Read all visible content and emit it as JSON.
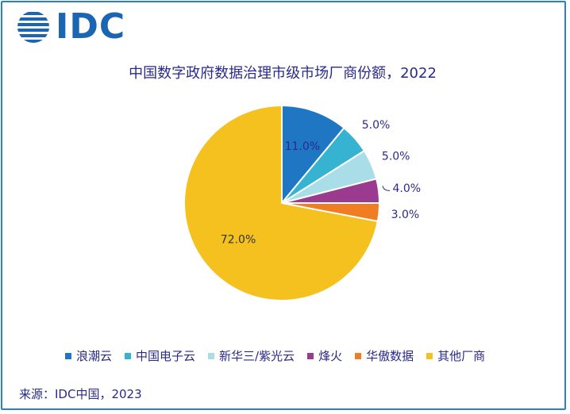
{
  "logo": {
    "text": "IDC"
  },
  "source": "来源：IDC中国，2023",
  "chart_data": {
    "type": "pie",
    "title": "中国数字政府数据治理市级市场厂商份额，2022",
    "legend_position": "bottom",
    "slices": [
      {
        "name": "浪潮云",
        "value": 11.0,
        "label": "11.0%",
        "color": "#1f77c4"
      },
      {
        "name": "中国电子云",
        "value": 5.0,
        "label": "5.0%",
        "color": "#36b3d0"
      },
      {
        "name": "新华三/紫光云",
        "value": 5.0,
        "label": "5.0%",
        "color": "#a9dde8"
      },
      {
        "name": "烽火",
        "value": 4.0,
        "label": "4.0%",
        "color": "#9a3b8f"
      },
      {
        "name": "华傲数据",
        "value": 3.0,
        "label": "3.0%",
        "color": "#f07d22"
      },
      {
        "name": "其他厂商",
        "value": 72.0,
        "label": "72.0%",
        "color": "#f4c11f"
      }
    ]
  }
}
